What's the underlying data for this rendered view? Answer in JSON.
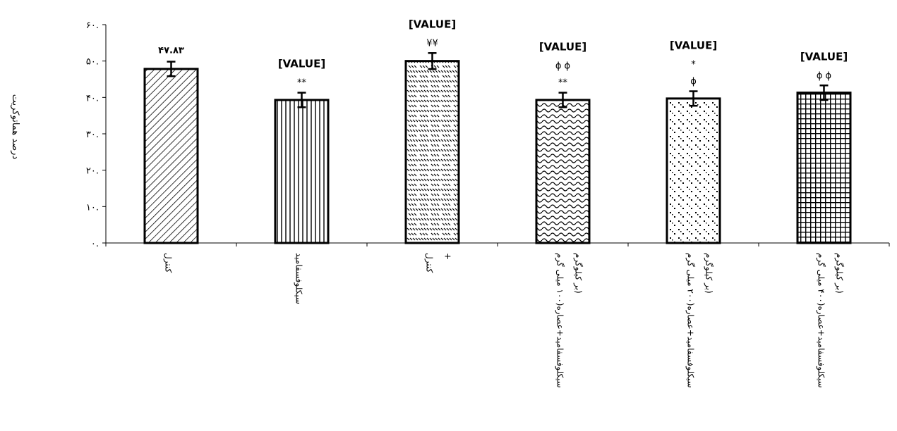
{
  "chart_data": {
    "type": "bar",
    "ylabel": "درصد هماتوکریت",
    "ylim": [
      0,
      60
    ],
    "yticks": [
      {
        "value": 0,
        "label": "۰."
      },
      {
        "value": 10,
        "label": "۱۰."
      },
      {
        "value": 20,
        "label": "۲۰."
      },
      {
        "value": 30,
        "label": "۳۰."
      },
      {
        "value": 40,
        "label": "۴۰."
      },
      {
        "value": 50,
        "label": "۵۰."
      },
      {
        "value": 60,
        "label": "۶۰."
      }
    ],
    "grid": false,
    "bars": [
      {
        "category": [
          "کنترل"
        ],
        "value": 47.83,
        "error": 2.0,
        "label": "۴۷.۸۳",
        "label_style": "number",
        "marks": [],
        "pattern": "diag-right"
      },
      {
        "category": [
          "سیکلوفسفامید"
        ],
        "value": 39.3,
        "error": 2.0,
        "label": "[VALUE]",
        "label_style": "placeholder",
        "marks": [
          "**"
        ],
        "pattern": "vertical"
      },
      {
        "category": [
          "کنترل",
          "+"
        ],
        "value": 50.0,
        "error": 2.2,
        "label": "[VALUE]",
        "label_style": "placeholder",
        "marks": [
          "¥¥"
        ],
        "pattern": "diag-left"
      },
      {
        "category": [
          "سیکلوفسفامید+عصاره(۱۰۰ میلی گرم",
          "بر کیلوگرم)"
        ],
        "value": 39.3,
        "error": 2.0,
        "label": "[VALUE]",
        "label_style": "placeholder",
        "marks": [
          "ɸ ɸ",
          "**"
        ],
        "pattern": "wave"
      },
      {
        "category": [
          "سیکلوفسفامید+عصاره(۲۰۰ میلی گرم",
          "بر کیلوگرم)"
        ],
        "value": 39.7,
        "error": 2.0,
        "label": "[VALUE]",
        "label_style": "placeholder",
        "marks": [
          "*",
          "ɸ"
        ],
        "pattern": "dots"
      },
      {
        "category": [
          "سیکلوفسفامید+عصاره(۴۰۰ میلی گرم",
          "بر کیلوگرم)"
        ],
        "value": 41.3,
        "error": 2.0,
        "label": "[VALUE]",
        "label_style": "placeholder",
        "marks": [
          "ɸ ɸ"
        ],
        "pattern": "grid"
      }
    ]
  }
}
